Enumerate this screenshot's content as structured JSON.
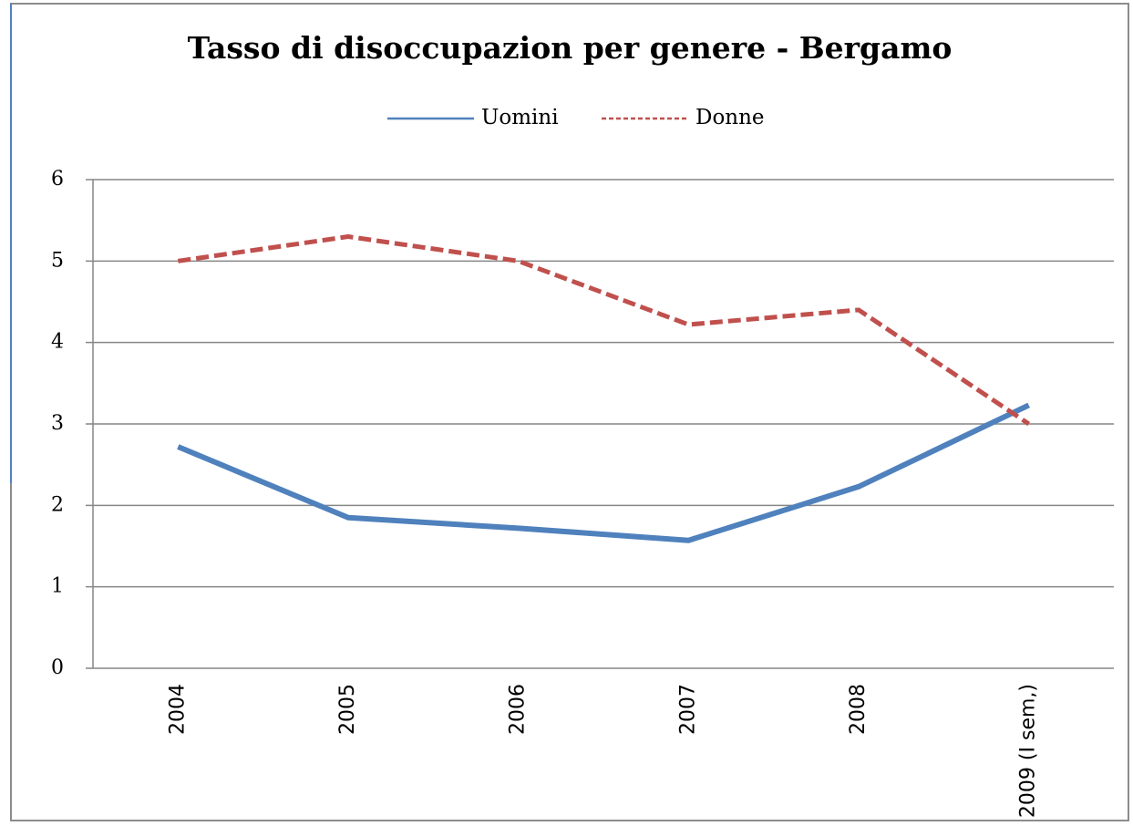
{
  "chart_data": {
    "type": "line",
    "title": "Tasso di disoccupazion per genere - Bergamo",
    "categories": [
      "2004",
      "2005",
      "2006",
      "2007",
      "2008",
      "2009 (I sem,)"
    ],
    "series": [
      {
        "name": "Uomini",
        "color": "#4f81bd",
        "values": [
          2.72,
          1.85,
          1.72,
          1.57,
          2.23,
          3.23
        ]
      },
      {
        "name": "Donne",
        "color": "#c0504d",
        "values": [
          5.0,
          5.3,
          5.0,
          4.22,
          4.4,
          3.0
        ]
      }
    ],
    "ylim": [
      0,
      6
    ],
    "yticks": [
      0,
      1,
      2,
      3,
      4,
      5,
      6
    ],
    "grid": true,
    "legend": "top"
  }
}
